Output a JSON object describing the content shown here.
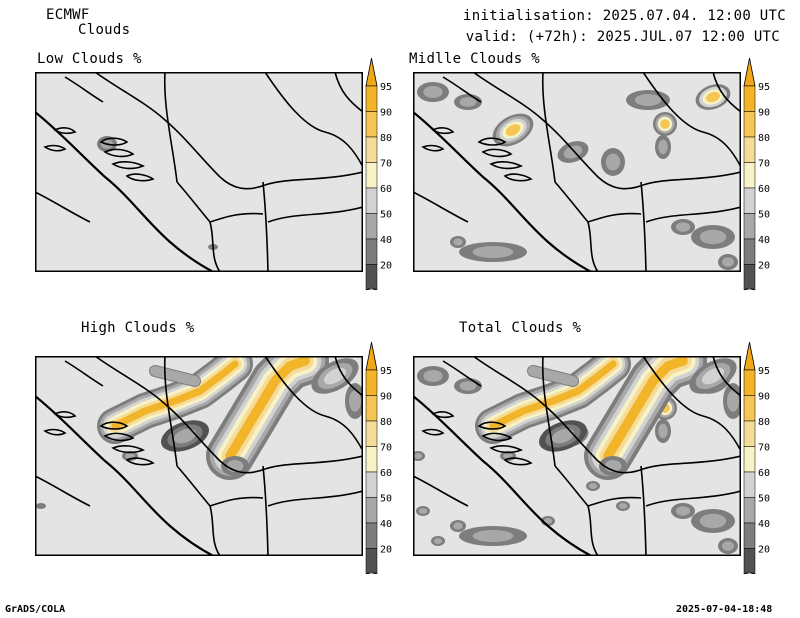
{
  "header": {
    "model": "ECMWF",
    "product": "Clouds",
    "init": "initialisation: 2025.07.04. 12:00 UTC",
    "valid": "valid: (+72h): 2025.JUL.07 12:00 UTC"
  },
  "panels": [
    {
      "title": "Low Clouds %"
    },
    {
      "title": "Midlle Clouds %"
    },
    {
      "title": "High Clouds %"
    },
    {
      "title": "Total Clouds %"
    }
  ],
  "colorbar": {
    "labels": [
      "95",
      "90",
      "80",
      "70",
      "60",
      "50",
      "40",
      "20"
    ],
    "colors": [
      "#f2b428",
      "#f5c655",
      "#f6dc9a",
      "#f7f3c6",
      "#d2d2d2",
      "#a8a8a8",
      "#7d7d7d",
      "#525252"
    ],
    "arrow_top_color": "#f0a818",
    "arrow_bottom_color": "#ffffff"
  },
  "colors": {
    "background": "#e4e4e4",
    "border": "#000000"
  },
  "footer": {
    "left": "GrADS/COLA",
    "right": "2025-07-04-18:48"
  }
}
